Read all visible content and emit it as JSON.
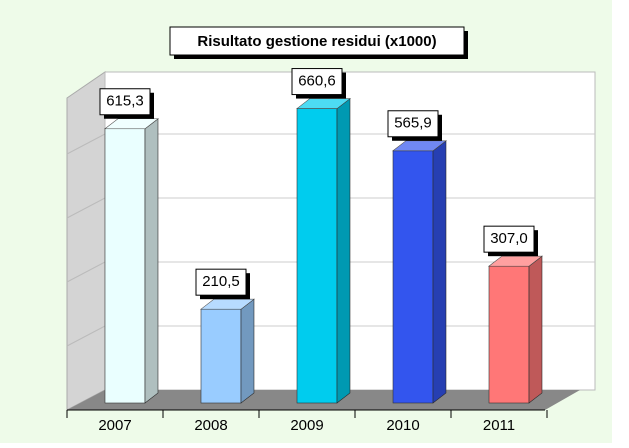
{
  "chart_data": {
    "type": "bar3d",
    "title": "Risultato gestione residui (x1000)",
    "categories": [
      "2007",
      "2008",
      "2009",
      "2010",
      "2011"
    ],
    "values": [
      615.3,
      210.5,
      660.6,
      565.9,
      307.0
    ],
    "value_labels": [
      "615,3",
      "210,5",
      "660,6",
      "565,9",
      "307,0"
    ],
    "colors": [
      "#eaffff",
      "#99ccff",
      "#00ccee",
      "#3355ee",
      "#ff7777"
    ],
    "ylim": [
      0,
      700
    ]
  }
}
